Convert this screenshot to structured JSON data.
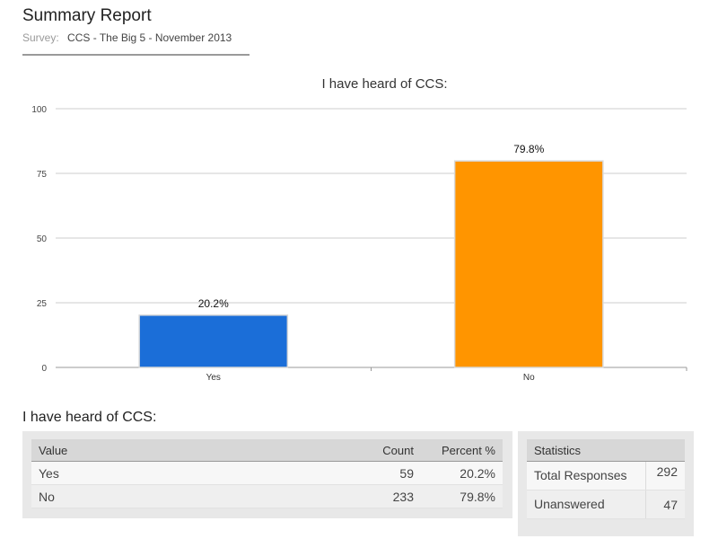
{
  "report": {
    "title": "Summary Report",
    "survey_label": "Survey:",
    "survey_name": "CCS - The Big 5 - November 2013"
  },
  "chart_data": {
    "type": "bar",
    "title": "I have heard of CCS:",
    "categories": [
      "Yes",
      "No"
    ],
    "values": [
      20.2,
      79.8
    ],
    "data_labels": [
      "20.2%",
      "79.8%"
    ],
    "colors": [
      "#1b6ed8",
      "#ff9500"
    ],
    "yticks": [
      0,
      25,
      50,
      75,
      100
    ],
    "ylim": [
      0,
      100
    ],
    "xlabel": "",
    "ylabel": "",
    "grid": true
  },
  "results": {
    "heading": "I have heard of CCS:",
    "columns": [
      "Value",
      "Count",
      "Percent %"
    ],
    "rows": [
      {
        "value": "Yes",
        "count": "59",
        "percent": "20.2%"
      },
      {
        "value": "No",
        "count": "233",
        "percent": "79.8%"
      }
    ]
  },
  "statistics": {
    "header": "Statistics",
    "rows": [
      {
        "label": "Total Responses",
        "value": "292"
      },
      {
        "label": "Unanswered",
        "value": "47"
      }
    ]
  }
}
